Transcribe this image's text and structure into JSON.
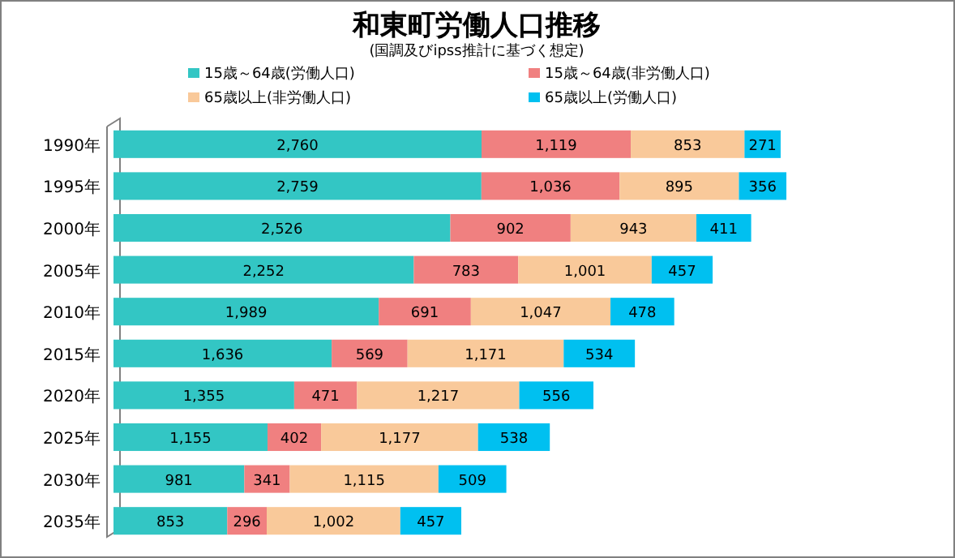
{
  "chart_data": {
    "type": "bar",
    "orientation": "horizontal",
    "stacked": true,
    "legend": "top",
    "title": "和東町労働人口推移",
    "subtitle": "(国調及びipss推計に基づく想定)",
    "categories": [
      "1990年",
      "1995年",
      "2000年",
      "2005年",
      "2010年",
      "2015年",
      "2020年",
      "2025年",
      "2030年",
      "2035年"
    ],
    "series": [
      {
        "name": "15歳～64歳(労働人口)",
        "color": "#33c6c4",
        "values": [
          2760,
          2759,
          2526,
          2252,
          1989,
          1636,
          1355,
          1155,
          981,
          853
        ],
        "value_labels": [
          "2,760",
          "2,759",
          "2,526",
          "2,252",
          "1,989",
          "1,636",
          "1,355",
          "1,155",
          "981",
          "853"
        ]
      },
      {
        "name": "15歳～64歳(非労働人口)",
        "color": "#f08080",
        "values": [
          1119,
          1036,
          902,
          783,
          691,
          569,
          471,
          402,
          341,
          296
        ],
        "value_labels": [
          "1,119",
          "1,036",
          "902",
          "783",
          "691",
          "569",
          "471",
          "402",
          "341",
          "296"
        ]
      },
      {
        "name": "65歳以上(非労働人口)",
        "color": "#f9c99a",
        "values": [
          853,
          895,
          943,
          1001,
          1047,
          1171,
          1217,
          1177,
          1115,
          1002
        ],
        "value_labels": [
          "853",
          "895",
          "943",
          "1,001",
          "1,047",
          "1,171",
          "1,217",
          "1,177",
          "1,115",
          "1,002"
        ]
      },
      {
        "name": "65歳以上(労働人口)",
        "color": "#00c0f0",
        "values": [
          271,
          356,
          411,
          457,
          478,
          534,
          556,
          538,
          509,
          457
        ],
        "value_labels": [
          "271",
          "356",
          "411",
          "457",
          "478",
          "534",
          "556",
          "538",
          "509",
          "457"
        ]
      }
    ]
  }
}
